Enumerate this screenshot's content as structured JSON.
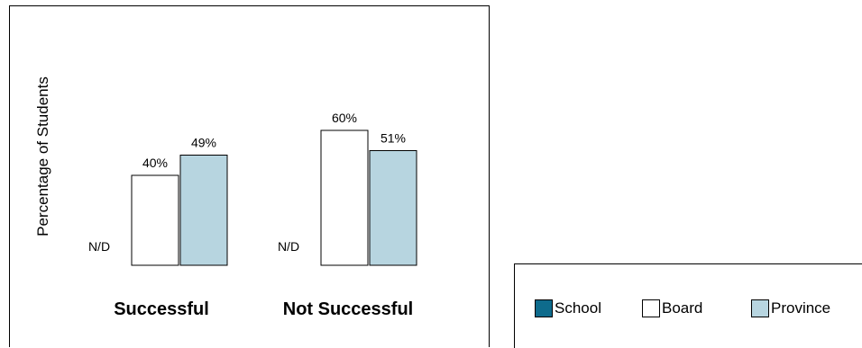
{
  "chart_data": {
    "type": "bar",
    "ylabel": "Percentage of Students",
    "categories": [
      "Successful",
      "Not Successful"
    ],
    "series": [
      {
        "name": "School",
        "color": "#0e6b8c",
        "values": [
          null,
          null
        ],
        "labels": [
          "N/D",
          "N/D"
        ]
      },
      {
        "name": "Board",
        "color": "#ffffff",
        "values": [
          40,
          60
        ],
        "labels": [
          "40%",
          "60%"
        ]
      },
      {
        "name": "Province",
        "color": "#b7d5e0",
        "values": [
          49,
          51
        ],
        "labels": [
          "49%",
          "51%"
        ]
      }
    ],
    "ylim": [
      0,
      100
    ],
    "grid": false,
    "legend": "bottom-right"
  }
}
